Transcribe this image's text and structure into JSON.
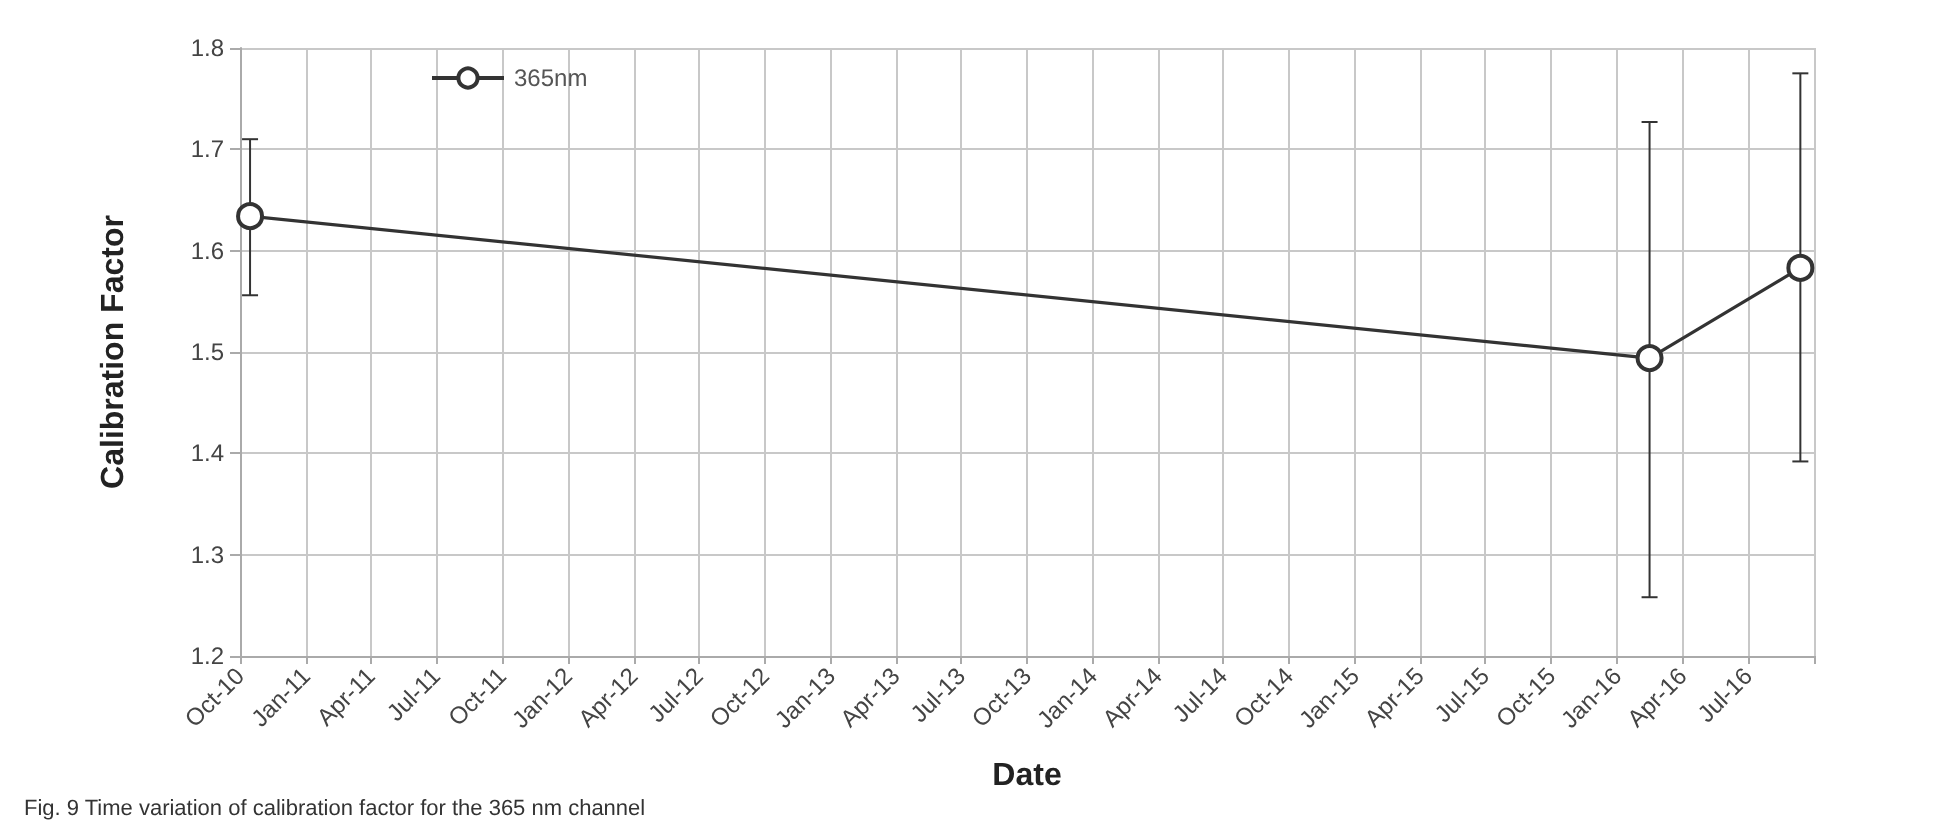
{
  "chart_data": {
    "type": "line",
    "xlabel": "Date",
    "ylabel": "Calibration Factor",
    "annotations": [
      "Fig. 9 Time variation of calibration factor for the 365 nm channel"
    ],
    "x": [
      "2010-10-15",
      "2016-02-15",
      "2016-09-12"
    ],
    "series": [
      {
        "name": "365nm",
        "color": "#333333",
        "values": [
          1.634,
          1.494,
          1.583
        ],
        "errors": [
          [
            1.556,
            1.71
          ],
          [
            1.258,
            1.727
          ],
          [
            1.392,
            1.775
          ]
        ]
      }
    ],
    "xlim": [
      "2010-10",
      "2016-10"
    ],
    "xticks": [
      {
        "value": "2010-10",
        "label": "Oct-10"
      },
      {
        "value": "2011-01",
        "label": "Jan-11"
      },
      {
        "value": "2011-04",
        "label": "Apr-11"
      },
      {
        "value": "2011-07",
        "label": "Jul-11"
      },
      {
        "value": "2011-10",
        "label": "Oct-11"
      },
      {
        "value": "2012-01",
        "label": "Jan-12"
      },
      {
        "value": "2012-04",
        "label": "Apr-12"
      },
      {
        "value": "2012-07",
        "label": "Jul-12"
      },
      {
        "value": "2012-10",
        "label": "Oct-12"
      },
      {
        "value": "2013-01",
        "label": "Jan-13"
      },
      {
        "value": "2013-04",
        "label": "Apr-13"
      },
      {
        "value": "2013-07",
        "label": "Jul-13"
      },
      {
        "value": "2013-10",
        "label": "Oct-13"
      },
      {
        "value": "2014-01",
        "label": "Jan-14"
      },
      {
        "value": "2014-04",
        "label": "Apr-14"
      },
      {
        "value": "2014-07",
        "label": "Jul-14"
      },
      {
        "value": "2014-10",
        "label": "Oct-14"
      },
      {
        "value": "2015-01",
        "label": "Jan-15"
      },
      {
        "value": "2015-04",
        "label": "Apr-15"
      },
      {
        "value": "2015-07",
        "label": "Jul-15"
      },
      {
        "value": "2015-10",
        "label": "Oct-15"
      },
      {
        "value": "2016-01",
        "label": "Jan-16"
      },
      {
        "value": "2016-04",
        "label": "Apr-16"
      },
      {
        "value": "2016-07",
        "label": "Jul-16"
      },
      {
        "value": "2016-10",
        "label": null
      }
    ],
    "ylim": [
      1.2,
      1.8
    ],
    "yticks": [
      1.2,
      1.3,
      1.4,
      1.5,
      1.6,
      1.7,
      1.8
    ],
    "grid": true,
    "legend": "top left",
    "marker": "circle",
    "line_style": "solid"
  }
}
